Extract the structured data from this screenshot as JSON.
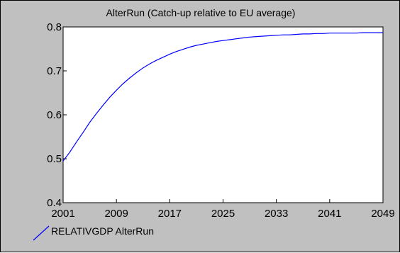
{
  "chart_data": {
    "type": "line",
    "title": "AlterRun (Catch-up relative to EU average)",
    "xlabel": "",
    "ylabel": "",
    "xlim": [
      2001,
      2049
    ],
    "ylim": [
      0.4,
      0.8
    ],
    "x_ticks": [
      "2001",
      "2009",
      "2017",
      "2025",
      "2033",
      "2041",
      "2049"
    ],
    "y_ticks": [
      "0.4",
      "0.5",
      "0.6",
      "0.7",
      "0.8"
    ],
    "grid": false,
    "legend_position": "bottom-left",
    "background_color": "#c0c0c0",
    "plot_background_color": "#ffffff",
    "series": [
      {
        "name": "RELATIVGDP AlterRun",
        "color": "#0000ff",
        "x": [
          2001,
          2002,
          2003,
          2004,
          2005,
          2006,
          2007,
          2008,
          2009,
          2010,
          2011,
          2012,
          2013,
          2014,
          2015,
          2016,
          2017,
          2018,
          2019,
          2020,
          2021,
          2022,
          2023,
          2024,
          2025,
          2026,
          2027,
          2028,
          2029,
          2030,
          2031,
          2032,
          2033,
          2034,
          2035,
          2036,
          2037,
          2038,
          2039,
          2040,
          2041,
          2042,
          2043,
          2044,
          2045,
          2046,
          2047,
          2048,
          2049
        ],
        "values": [
          0.495,
          0.515,
          0.538,
          0.56,
          0.583,
          0.603,
          0.622,
          0.64,
          0.656,
          0.671,
          0.684,
          0.696,
          0.707,
          0.716,
          0.724,
          0.731,
          0.738,
          0.744,
          0.749,
          0.754,
          0.758,
          0.761,
          0.764,
          0.767,
          0.769,
          0.771,
          0.773,
          0.775,
          0.777,
          0.778,
          0.779,
          0.78,
          0.781,
          0.782,
          0.782,
          0.783,
          0.784,
          0.784,
          0.785,
          0.785,
          0.786,
          0.786,
          0.786,
          0.786,
          0.786,
          0.787,
          0.787,
          0.787,
          0.787
        ]
      }
    ]
  }
}
